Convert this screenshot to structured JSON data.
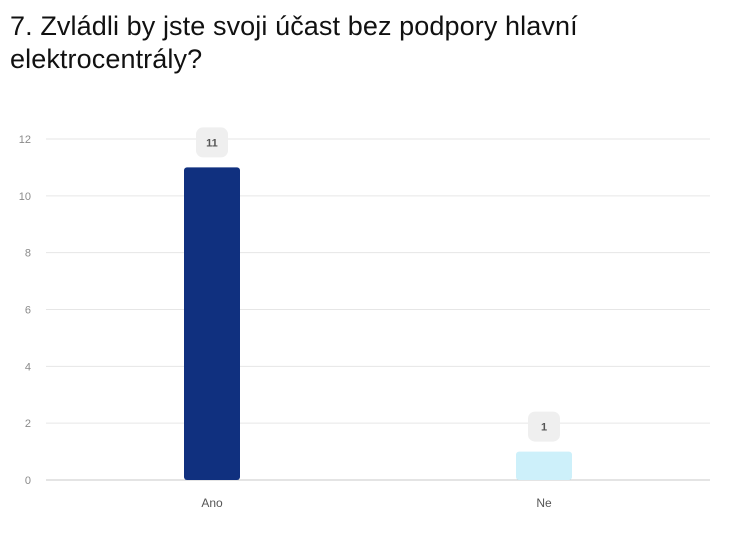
{
  "question": {
    "title": "7. Zvládli by jste svoji účast bez podpory hlavní elektrocentrály?"
  },
  "chart_data": {
    "type": "bar",
    "categories": [
      "Ano",
      "Ne"
    ],
    "values": [
      11,
      1
    ],
    "data_labels": [
      "11",
      "1"
    ],
    "title": "",
    "xlabel": "",
    "ylabel": "",
    "ylim": [
      0,
      12
    ],
    "yticks": [
      0,
      2,
      4,
      6,
      8,
      10,
      12
    ],
    "grid": true,
    "legend": "none",
    "colors": [
      "#10307f",
      "#cdf0fa"
    ],
    "label_bg": "#efefef",
    "grid_color": "#e6e6e6"
  }
}
